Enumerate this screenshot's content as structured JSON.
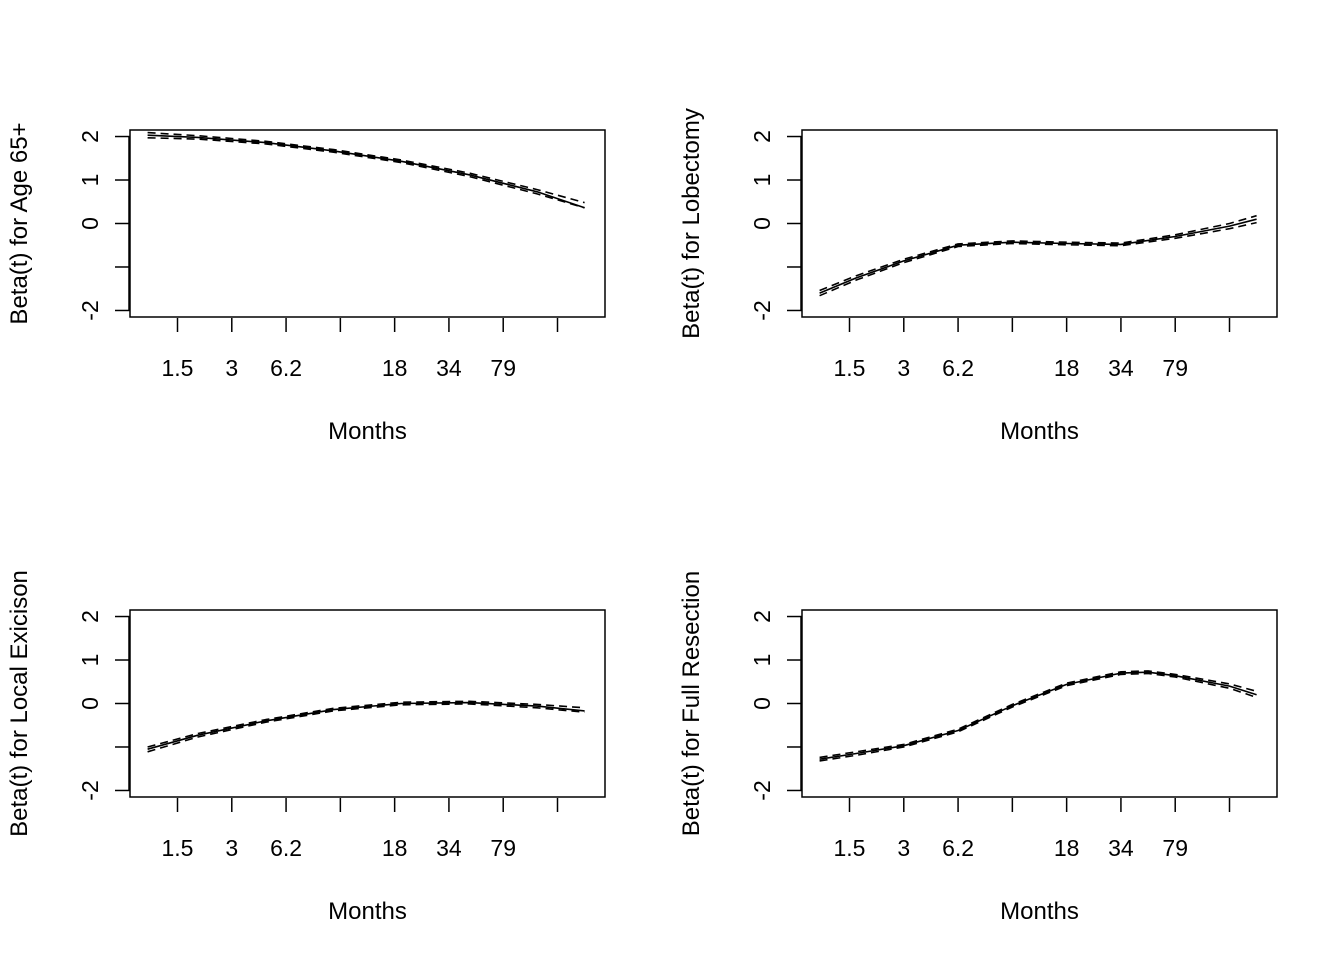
{
  "chart_data": [
    {
      "type": "line",
      "title": "",
      "xlabel": "Months",
      "ylabel": "Beta(t) for Age 65+",
      "x_ticks": [
        {
          "pos": 0.35,
          "label": "1.5"
        },
        {
          "pos": 0.75,
          "label": "3"
        },
        {
          "pos": 1.15,
          "label": "6.2"
        },
        {
          "pos": 1.55,
          "label": ""
        },
        {
          "pos": 1.95,
          "label": "18"
        },
        {
          "pos": 2.35,
          "label": "34"
        },
        {
          "pos": 2.75,
          "label": "79"
        },
        {
          "pos": 3.15,
          "label": ""
        }
      ],
      "x_range": [
        0,
        3.5
      ],
      "y_ticks": [
        2,
        1,
        0,
        -1,
        -2
      ],
      "y_tick_labels": [
        "2",
        "1",
        "0",
        "",
        "-2"
      ],
      "ylim": [
        -2.15,
        2.15
      ],
      "series": [
        {
          "name": "estimate",
          "style": "solid",
          "x": [
            0.13,
            0.5,
            1.0,
            1.5,
            2.0,
            2.5,
            3.0,
            3.35
          ],
          "y": [
            2.03,
            1.98,
            1.86,
            1.67,
            1.43,
            1.12,
            0.73,
            0.36
          ]
        },
        {
          "name": "upper",
          "style": "dashed",
          "x": [
            0.13,
            0.5,
            1.0,
            1.5,
            2.0,
            2.5,
            3.0,
            3.35
          ],
          "y": [
            2.09,
            2.02,
            1.89,
            1.7,
            1.46,
            1.16,
            0.78,
            0.48
          ]
        },
        {
          "name": "lower",
          "style": "dashed",
          "x": [
            0.13,
            0.5,
            1.0,
            1.5,
            2.0,
            2.5,
            3.0,
            3.35
          ],
          "y": [
            1.97,
            1.94,
            1.83,
            1.64,
            1.4,
            1.08,
            0.68,
            0.36
          ]
        }
      ]
    },
    {
      "type": "line",
      "title": "",
      "xlabel": "Months",
      "ylabel": "Beta(t) for Lobectomy",
      "x_ticks": [
        {
          "pos": 0.35,
          "label": "1.5"
        },
        {
          "pos": 0.75,
          "label": "3"
        },
        {
          "pos": 1.15,
          "label": "6.2"
        },
        {
          "pos": 1.55,
          "label": ""
        },
        {
          "pos": 1.95,
          "label": "18"
        },
        {
          "pos": 2.35,
          "label": "34"
        },
        {
          "pos": 2.75,
          "label": "79"
        },
        {
          "pos": 3.15,
          "label": ""
        }
      ],
      "x_range": [
        0,
        3.5
      ],
      "y_ticks": [
        2,
        1,
        0,
        -1,
        -2
      ],
      "y_tick_labels": [
        "2",
        "1",
        "0",
        "",
        "-2"
      ],
      "ylim": [
        -2.15,
        2.15
      ],
      "series": [
        {
          "name": "estimate",
          "style": "solid",
          "x": [
            0.13,
            0.4,
            0.75,
            1.15,
            1.55,
            1.95,
            2.35,
            2.75,
            3.15,
            3.35
          ],
          "y": [
            -1.6,
            -1.25,
            -0.86,
            -0.5,
            -0.43,
            -0.46,
            -0.48,
            -0.3,
            -0.06,
            0.1
          ]
        },
        {
          "name": "upper",
          "style": "dashed",
          "x": [
            0.13,
            0.4,
            0.75,
            1.15,
            1.55,
            1.95,
            2.35,
            2.75,
            3.15,
            3.35
          ],
          "y": [
            -1.54,
            -1.2,
            -0.82,
            -0.47,
            -0.4,
            -0.43,
            -0.45,
            -0.26,
            0.0,
            0.18
          ]
        },
        {
          "name": "lower",
          "style": "dashed",
          "x": [
            0.13,
            0.4,
            0.75,
            1.15,
            1.55,
            1.95,
            2.35,
            2.75,
            3.15,
            3.35
          ],
          "y": [
            -1.66,
            -1.3,
            -0.9,
            -0.53,
            -0.46,
            -0.49,
            -0.51,
            -0.34,
            -0.12,
            0.02
          ]
        }
      ]
    },
    {
      "type": "line",
      "title": "",
      "xlabel": "Months",
      "ylabel": "Beta(t) for Local Exicison",
      "x_ticks": [
        {
          "pos": 0.35,
          "label": "1.5"
        },
        {
          "pos": 0.75,
          "label": "3"
        },
        {
          "pos": 1.15,
          "label": "6.2"
        },
        {
          "pos": 1.55,
          "label": ""
        },
        {
          "pos": 1.95,
          "label": "18"
        },
        {
          "pos": 2.35,
          "label": "34"
        },
        {
          "pos": 2.75,
          "label": "79"
        },
        {
          "pos": 3.15,
          "label": ""
        }
      ],
      "x_range": [
        0,
        3.5
      ],
      "y_ticks": [
        2,
        1,
        0,
        -1,
        -2
      ],
      "y_tick_labels": [
        "2",
        "1",
        "0",
        "",
        "-2"
      ],
      "ylim": [
        -2.15,
        2.15
      ],
      "series": [
        {
          "name": "estimate",
          "style": "solid",
          "x": [
            0.13,
            0.5,
            1.0,
            1.5,
            2.0,
            2.5,
            3.0,
            3.35
          ],
          "y": [
            -1.05,
            -0.73,
            -0.4,
            -0.14,
            0.0,
            0.02,
            -0.06,
            -0.17
          ]
        },
        {
          "name": "upper",
          "style": "dashed",
          "x": [
            0.13,
            0.5,
            1.0,
            1.5,
            2.0,
            2.5,
            3.0,
            3.35
          ],
          "y": [
            -1.0,
            -0.69,
            -0.37,
            -0.11,
            0.03,
            0.05,
            -0.02,
            -0.1
          ]
        },
        {
          "name": "lower",
          "style": "dashed",
          "x": [
            0.13,
            0.5,
            1.0,
            1.5,
            2.0,
            2.5,
            3.0,
            3.35
          ],
          "y": [
            -1.11,
            -0.77,
            -0.43,
            -0.17,
            -0.03,
            -0.01,
            -0.1,
            -0.2
          ]
        }
      ]
    },
    {
      "type": "line",
      "title": "",
      "xlabel": "Months",
      "ylabel": "Beta(t) for Full Resection",
      "x_ticks": [
        {
          "pos": 0.35,
          "label": "1.5"
        },
        {
          "pos": 0.75,
          "label": "3"
        },
        {
          "pos": 1.15,
          "label": "6.2"
        },
        {
          "pos": 1.55,
          "label": ""
        },
        {
          "pos": 1.95,
          "label": "18"
        },
        {
          "pos": 2.35,
          "label": "34"
        },
        {
          "pos": 2.75,
          "label": "79"
        },
        {
          "pos": 3.15,
          "label": ""
        }
      ],
      "x_range": [
        0,
        3.5
      ],
      "y_ticks": [
        2,
        1,
        0,
        -1,
        -2
      ],
      "y_tick_labels": [
        "2",
        "1",
        "0",
        "",
        "-2"
      ],
      "ylim": [
        -2.15,
        2.15
      ],
      "series": [
        {
          "name": "estimate",
          "style": "solid",
          "x": [
            0.13,
            0.4,
            0.75,
            1.15,
            1.55,
            1.95,
            2.35,
            2.55,
            2.75,
            3.15,
            3.35
          ],
          "y": [
            -1.28,
            -1.15,
            -0.97,
            -0.62,
            -0.05,
            0.44,
            0.7,
            0.72,
            0.64,
            0.4,
            0.2
          ]
        },
        {
          "name": "upper",
          "style": "dashed",
          "x": [
            0.13,
            0.4,
            0.75,
            1.15,
            1.55,
            1.95,
            2.35,
            2.55,
            2.75,
            3.15,
            3.35
          ],
          "y": [
            -1.24,
            -1.11,
            -0.94,
            -0.59,
            -0.02,
            0.47,
            0.73,
            0.75,
            0.67,
            0.45,
            0.28
          ]
        },
        {
          "name": "lower",
          "style": "dashed",
          "x": [
            0.13,
            0.4,
            0.75,
            1.15,
            1.55,
            1.95,
            2.35,
            2.55,
            2.75,
            3.15,
            3.35
          ],
          "y": [
            -1.32,
            -1.19,
            -1.0,
            -0.65,
            -0.08,
            0.41,
            0.67,
            0.69,
            0.61,
            0.35,
            0.14
          ]
        }
      ]
    }
  ]
}
